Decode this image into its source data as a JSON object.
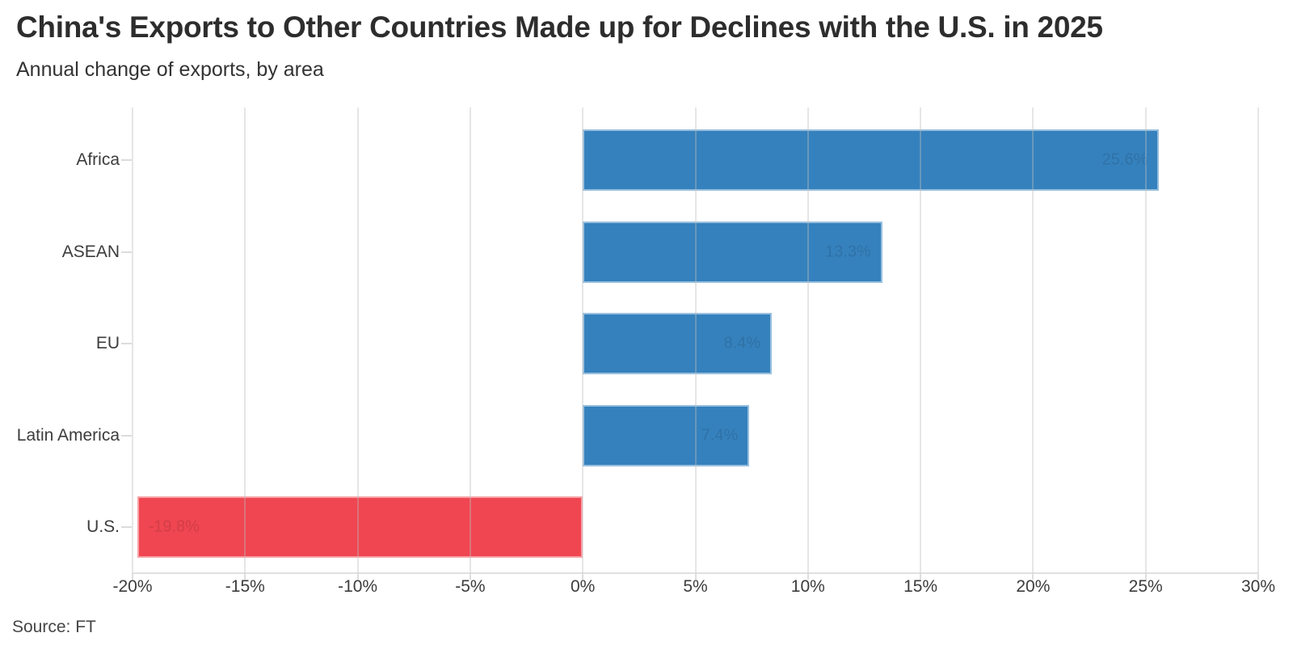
{
  "chart_data": {
    "type": "bar",
    "orientation": "horizontal",
    "title": "China's Exports to Other Countries Made up for Declines with the U.S. in 2025",
    "subtitle": "Annual change of exports, by area",
    "source": "Source: FT",
    "categories": [
      "Africa",
      "ASEAN",
      "EU",
      "Latin America",
      "U.S."
    ],
    "values": [
      25.6,
      13.3,
      8.4,
      7.4,
      -19.8
    ],
    "bar_labels": [
      "25.6%",
      "13.3%",
      "8.4%",
      "7.4%",
      "-19.8%"
    ],
    "xlabel": "",
    "ylabel": "",
    "xlim": [
      -20,
      30
    ],
    "xticks": [
      -20,
      -15,
      -10,
      -5,
      0,
      5,
      10,
      15,
      20,
      25,
      30
    ],
    "xtick_labels": [
      "-20%",
      "-15%",
      "-10%",
      "-5%",
      "0%",
      "5%",
      "10%",
      "15%",
      "20%",
      "25%",
      "30%"
    ],
    "grid": "vertical",
    "legend": false,
    "colors": {
      "positive": "#3581bd",
      "negative": "#ef4651",
      "grid": "#e9e9e9",
      "axis": "#e0e0e0",
      "text": "#3c3c3c",
      "title": "#2d2d2d"
    }
  }
}
